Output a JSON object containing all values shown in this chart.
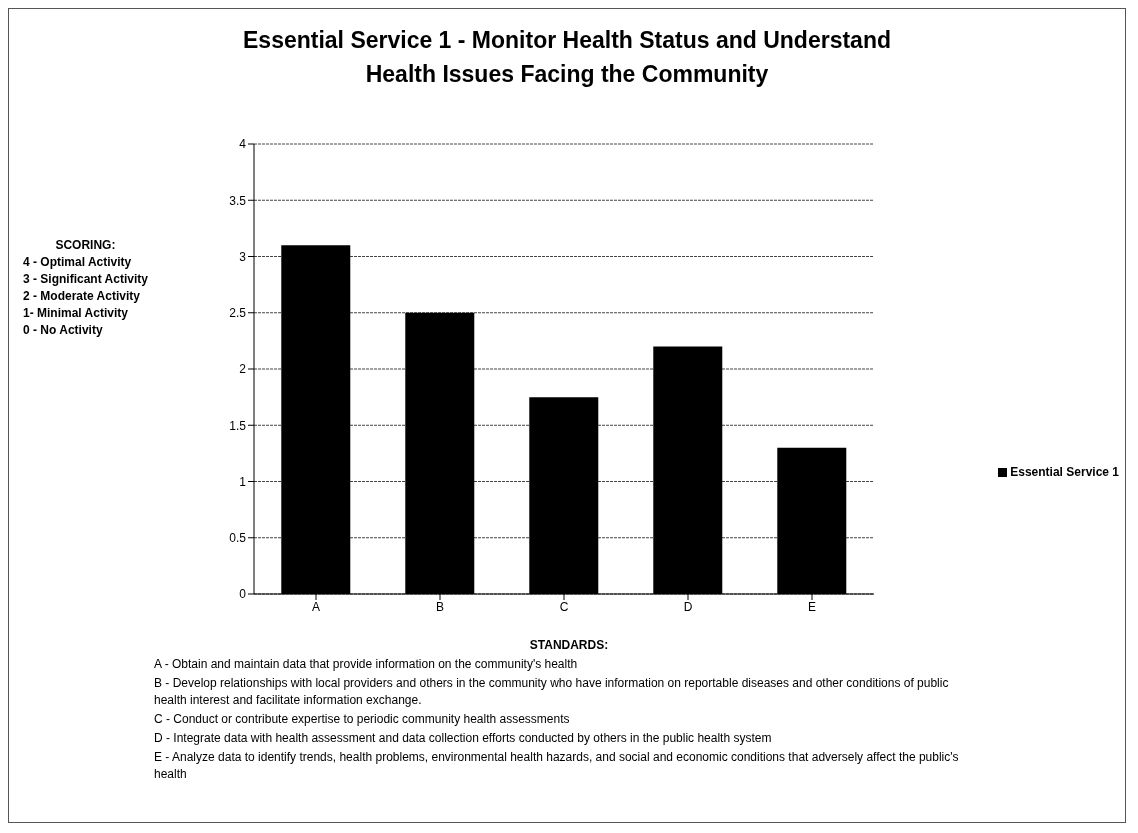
{
  "chart_data": {
    "type": "bar",
    "title": "Essential Service 1 -  Monitor Health Status and Understand Health Issues Facing the Community",
    "categories": [
      "A",
      "B",
      "C",
      "D",
      "E"
    ],
    "series": [
      {
        "name": "Essential Service 1",
        "color": "#000000",
        "values": [
          3.1,
          2.5,
          1.75,
          2.2,
          1.3
        ]
      }
    ],
    "ylim": [
      0,
      4
    ],
    "yticks": [
      0,
      0.5,
      1,
      1.5,
      2,
      2.5,
      3,
      3.5,
      4
    ],
    "grid": "y",
    "legend": "right",
    "annotations": [
      "SCORING:",
      "4 - Optimal Activity",
      "3 - Significant Activity",
      "2 - Moderate Activity",
      "1- Minimal Activity",
      "0 - No Activity",
      "STANDARDS:",
      "A - Obtain and maintain data that provide information on the community's health",
      "B - Develop relationships with local providers and others in the community who have information on reportable diseases and other conditions of public health interest and facilitate information exchange.",
      "C - Conduct or contribute expertise to periodic community health assessments",
      "D - Integrate data with health assessment and data collection efforts conducted by others in the public health system",
      "E - Analyze data to identify trends, health problems, environmental health hazards, and social and economic conditions that adversely affect the public's health"
    ]
  }
}
